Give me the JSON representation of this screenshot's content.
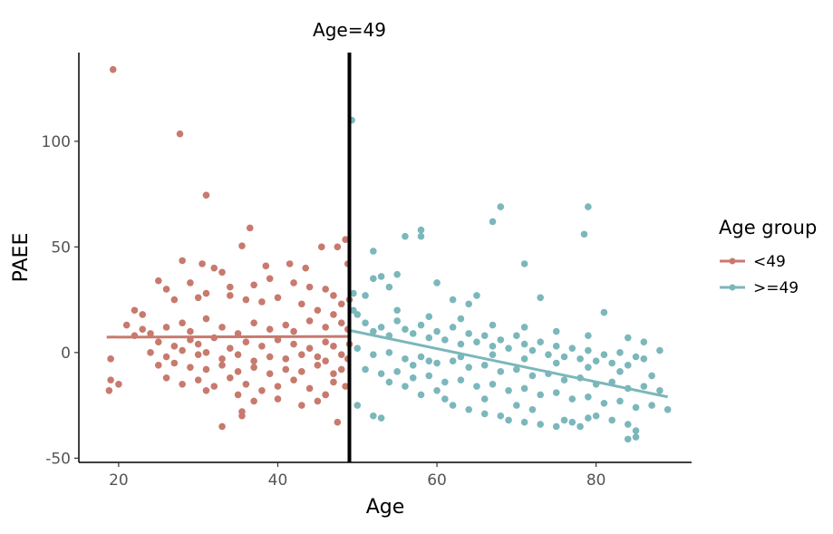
{
  "chart_data": {
    "type": "scatter",
    "title": "",
    "xlabel": "Age",
    "ylabel": "PAEE",
    "xlim": [
      15,
      92
    ],
    "ylim": [
      -52,
      142
    ],
    "x_ticks": [
      20,
      40,
      60,
      80
    ],
    "y_ticks": [
      -50,
      0,
      50,
      100
    ],
    "grid": false,
    "legend_position": "right",
    "annotation": {
      "label": "Age=49",
      "x": 49
    },
    "legend": {
      "title": "Age group",
      "entries": [
        "<49",
        ">=49"
      ]
    },
    "series": [
      {
        "name": "<49",
        "color": "#c77a6d",
        "fit": {
          "x": [
            18.5,
            49
          ],
          "y": [
            7.3,
            7.6
          ]
        },
        "points": [
          [
            19.3,
            134
          ],
          [
            27.7,
            103.5
          ],
          [
            31,
            74.5
          ],
          [
            28,
            43.5
          ],
          [
            30.5,
            42
          ],
          [
            32,
            40
          ],
          [
            36.5,
            59
          ],
          [
            35.5,
            50.5
          ],
          [
            38.5,
            41
          ],
          [
            41.5,
            42
          ],
          [
            43.5,
            40
          ],
          [
            45.5,
            50
          ],
          [
            47.5,
            50
          ],
          [
            48.5,
            53.5
          ],
          [
            48.8,
            42
          ],
          [
            25,
            34
          ],
          [
            26,
            30
          ],
          [
            29,
            33
          ],
          [
            33,
            38
          ],
          [
            34,
            31
          ],
          [
            37,
            32
          ],
          [
            39,
            35
          ],
          [
            42,
            33
          ],
          [
            44,
            31
          ],
          [
            46,
            30
          ],
          [
            47,
            27
          ],
          [
            48,
            23
          ],
          [
            22,
            20
          ],
          [
            23,
            18
          ],
          [
            27,
            25
          ],
          [
            30,
            26
          ],
          [
            31,
            28
          ],
          [
            34,
            27
          ],
          [
            36,
            25
          ],
          [
            38,
            24
          ],
          [
            40,
            26
          ],
          [
            43,
            23
          ],
          [
            45,
            20
          ],
          [
            47,
            18
          ],
          [
            49,
            25
          ],
          [
            21,
            13
          ],
          [
            24,
            9
          ],
          [
            26,
            12
          ],
          [
            28,
            14
          ],
          [
            29,
            10
          ],
          [
            31,
            16
          ],
          [
            33,
            12
          ],
          [
            35,
            9
          ],
          [
            37,
            14
          ],
          [
            39,
            11
          ],
          [
            41,
            13
          ],
          [
            42,
            10
          ],
          [
            44,
            15
          ],
          [
            46,
            12
          ],
          [
            48,
            14
          ],
          [
            48.8,
            11
          ],
          [
            25,
            5
          ],
          [
            27,
            3
          ],
          [
            29,
            6
          ],
          [
            30,
            4
          ],
          [
            32,
            7
          ],
          [
            34,
            2
          ],
          [
            36,
            5
          ],
          [
            38,
            3
          ],
          [
            40,
            6
          ],
          [
            42,
            4
          ],
          [
            44,
            2
          ],
          [
            46,
            5
          ],
          [
            47,
            3
          ],
          [
            49,
            4
          ],
          [
            24,
            0
          ],
          [
            26,
            -2
          ],
          [
            28,
            1
          ],
          [
            30,
            -1
          ],
          [
            31,
            0
          ],
          [
            33,
            -3
          ],
          [
            35,
            -1
          ],
          [
            37,
            -4
          ],
          [
            39,
            -2
          ],
          [
            41,
            -3
          ],
          [
            43,
            -1
          ],
          [
            45,
            -2
          ],
          [
            46,
            -4
          ],
          [
            48,
            -1
          ],
          [
            48.8,
            -3
          ],
          [
            25,
            -6
          ],
          [
            27,
            -5
          ],
          [
            29,
            -7
          ],
          [
            31,
            -8
          ],
          [
            33,
            -6
          ],
          [
            35,
            -9
          ],
          [
            37,
            -7
          ],
          [
            39,
            -10
          ],
          [
            41,
            -8
          ],
          [
            43,
            -9
          ],
          [
            45,
            -6
          ],
          [
            47,
            -10
          ],
          [
            48,
            -8
          ],
          [
            19,
            -3
          ],
          [
            19,
            -13
          ],
          [
            18.8,
            -18
          ],
          [
            20,
            -15
          ],
          [
            26,
            -12
          ],
          [
            28,
            -15
          ],
          [
            30,
            -13
          ],
          [
            32,
            -16
          ],
          [
            34,
            -12
          ],
          [
            36,
            -15
          ],
          [
            38,
            -18
          ],
          [
            40,
            -16
          ],
          [
            42,
            -13
          ],
          [
            44,
            -17
          ],
          [
            46,
            -20
          ],
          [
            47,
            -14
          ],
          [
            48.5,
            -16
          ],
          [
            31,
            -18
          ],
          [
            35,
            -20
          ],
          [
            37,
            -23
          ],
          [
            40,
            -22
          ],
          [
            43,
            -25
          ],
          [
            45,
            -23
          ],
          [
            46,
            -20
          ],
          [
            35.5,
            -28
          ],
          [
            35.5,
            -30
          ],
          [
            33,
            -35
          ],
          [
            47.5,
            -33
          ],
          [
            22,
            8
          ],
          [
            23,
            11
          ]
        ]
      },
      {
        "name": ">=49",
        "color": "#7bb7bb",
        "fit": {
          "x": [
            49,
            89
          ],
          "y": [
            10.5,
            -21
          ]
        },
        "points": [
          [
            49.3,
            110
          ],
          [
            49.5,
            28
          ],
          [
            49.5,
            20
          ],
          [
            51,
            27
          ],
          [
            52,
            35
          ],
          [
            53,
            36
          ],
          [
            54,
            31
          ],
          [
            55,
            37
          ],
          [
            56,
            55
          ],
          [
            58,
            55
          ],
          [
            58,
            58
          ],
          [
            52,
            48
          ],
          [
            60,
            33
          ],
          [
            62,
            25
          ],
          [
            64,
            23
          ],
          [
            65,
            27
          ],
          [
            67,
            62
          ],
          [
            68,
            69
          ],
          [
            71,
            42
          ],
          [
            73,
            26
          ],
          [
            78.5,
            56
          ],
          [
            79,
            69
          ],
          [
            81,
            19
          ],
          [
            50,
            18
          ],
          [
            51,
            14
          ],
          [
            52,
            10
          ],
          [
            53,
            12
          ],
          [
            54,
            8
          ],
          [
            55,
            15
          ],
          [
            56,
            11
          ],
          [
            57,
            9
          ],
          [
            58,
            13
          ],
          [
            59,
            7
          ],
          [
            60,
            10
          ],
          [
            61,
            6
          ],
          [
            62,
            12
          ],
          [
            63,
            4
          ],
          [
            64,
            9
          ],
          [
            65,
            5
          ],
          [
            66,
            8
          ],
          [
            67,
            3
          ],
          [
            68,
            6
          ],
          [
            69,
            2
          ],
          [
            70,
            8
          ],
          [
            71,
            4
          ],
          [
            72,
            1
          ],
          [
            73,
            5
          ],
          [
            74,
            -1
          ],
          [
            75,
            3
          ],
          [
            76,
            -2
          ],
          [
            77,
            2
          ],
          [
            78,
            -3
          ],
          [
            79,
            1
          ],
          [
            80,
            -4
          ],
          [
            81,
            -1
          ],
          [
            82,
            -5
          ],
          [
            83,
            0
          ],
          [
            84,
            -6
          ],
          [
            85,
            -2
          ],
          [
            86,
            -3
          ],
          [
            50,
            2
          ],
          [
            52,
            -1
          ],
          [
            54,
            0
          ],
          [
            56,
            -3
          ],
          [
            58,
            -2
          ],
          [
            60,
            -5
          ],
          [
            62,
            -4
          ],
          [
            64,
            -7
          ],
          [
            66,
            -6
          ],
          [
            68,
            -9
          ],
          [
            70,
            -8
          ],
          [
            72,
            -11
          ],
          [
            74,
            -10
          ],
          [
            76,
            -13
          ],
          [
            78,
            -12
          ],
          [
            80,
            -15
          ],
          [
            82,
            -14
          ],
          [
            84,
            -17
          ],
          [
            86,
            -16
          ],
          [
            88,
            -18
          ],
          [
            51,
            -8
          ],
          [
            53,
            -10
          ],
          [
            55,
            -9
          ],
          [
            57,
            -12
          ],
          [
            59,
            -11
          ],
          [
            61,
            -14
          ],
          [
            63,
            -13
          ],
          [
            65,
            -16
          ],
          [
            67,
            -15
          ],
          [
            69,
            -18
          ],
          [
            71,
            -17
          ],
          [
            73,
            -20
          ],
          [
            75,
            -19
          ],
          [
            77,
            -22
          ],
          [
            79,
            -21
          ],
          [
            81,
            -24
          ],
          [
            83,
            -23
          ],
          [
            85,
            -26
          ],
          [
            87,
            -25
          ],
          [
            89,
            -27
          ],
          [
            50,
            -25
          ],
          [
            52,
            -30
          ],
          [
            53,
            -31
          ],
          [
            61,
            -22
          ],
          [
            62,
            -25
          ],
          [
            64,
            -27
          ],
          [
            66,
            -29
          ],
          [
            68,
            -30
          ],
          [
            69,
            -32
          ],
          [
            71,
            -33
          ],
          [
            73,
            -34
          ],
          [
            75,
            -35
          ],
          [
            77,
            -33
          ],
          [
            79,
            -31
          ],
          [
            80,
            -30
          ],
          [
            82,
            -32
          ],
          [
            84,
            -34
          ],
          [
            85,
            -37
          ],
          [
            85,
            -40
          ],
          [
            84,
            -41
          ],
          [
            78,
            -35
          ],
          [
            76,
            -32
          ],
          [
            72,
            -27
          ],
          [
            70,
            -25
          ],
          [
            66,
            -22
          ],
          [
            60,
            -18
          ],
          [
            56,
            -16
          ],
          [
            54,
            -14
          ],
          [
            58,
            -20
          ],
          [
            57,
            -6
          ],
          [
            59,
            -4
          ],
          [
            63,
            -2
          ],
          [
            67,
            -1
          ],
          [
            71,
            -3
          ],
          [
            75,
            -5
          ],
          [
            79,
            -7
          ],
          [
            83,
            -9
          ],
          [
            87,
            -11
          ],
          [
            55,
            20
          ],
          [
            59,
            17
          ],
          [
            63,
            16
          ],
          [
            67,
            13
          ],
          [
            71,
            12
          ],
          [
            75,
            10
          ],
          [
            79,
            8
          ],
          [
            84,
            7
          ],
          [
            86,
            5
          ],
          [
            88,
            1
          ]
        ]
      }
    ]
  }
}
